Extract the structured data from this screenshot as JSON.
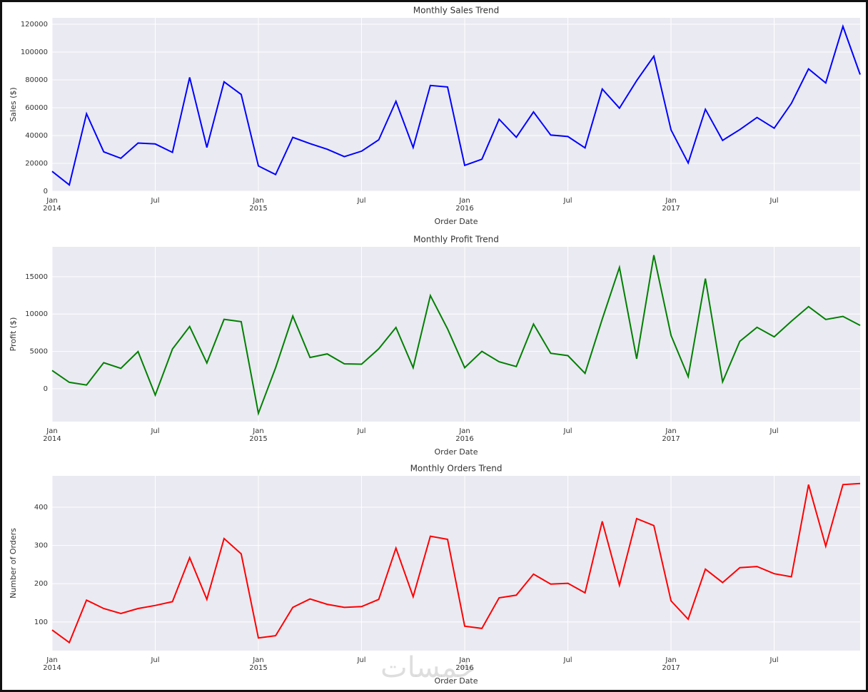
{
  "chart_data": [
    {
      "type": "line",
      "title": "Monthly Sales Trend",
      "xlabel": "Order Date",
      "ylabel": "Sales ($)",
      "color": "#0000ff",
      "categories": [
        "Jan 2014",
        null,
        null,
        null,
        null,
        null,
        "Jul",
        null,
        null,
        null,
        null,
        null,
        "Jan 2015",
        null,
        null,
        null,
        null,
        null,
        "Jul",
        null,
        null,
        null,
        null,
        null,
        "Jan 2016",
        null,
        null,
        null,
        null,
        null,
        "Jul",
        null,
        null,
        null,
        null,
        null,
        "Jan 2017",
        null,
        null,
        null,
        null,
        null,
        "Jul",
        null,
        null,
        null,
        null,
        null
      ],
      "values": [
        14237,
        4520,
        55691,
        28295,
        23648,
        34595,
        33946,
        27909,
        81777,
        31453,
        78629,
        69546,
        18174,
        11951,
        38726,
        34195,
        30132,
        24797,
        28765,
        36898,
        64596,
        31405,
        75973,
        74920,
        18542,
        22979,
        51716,
        38751,
        56988,
        40345,
        39262,
        31115,
        73410,
        59688,
        79412,
        96999,
        43971,
        20301,
        58872,
        36522,
        44261,
        52982,
        45264,
        63121,
        87867,
        77777,
        118448,
        83829
      ],
      "ylim": [
        0,
        124600
      ],
      "yticks": [
        0,
        20000,
        40000,
        60000,
        80000,
        100000,
        120000
      ],
      "grid": true
    },
    {
      "type": "line",
      "title": "Monthly Profit Trend",
      "xlabel": "Order Date",
      "ylabel": "Profit ($)",
      "color": "#008000",
      "categories": [
        "Jan 2014",
        null,
        null,
        null,
        null,
        null,
        "Jul",
        null,
        null,
        null,
        null,
        null,
        "Jan 2015",
        null,
        null,
        null,
        null,
        null,
        "Jul",
        null,
        null,
        null,
        null,
        null,
        "Jan 2016",
        null,
        null,
        null,
        null,
        null,
        "Jul",
        null,
        null,
        null,
        null,
        null,
        "Jan 2017",
        null,
        null,
        null,
        null,
        null,
        "Jul",
        null,
        null,
        null,
        null,
        null
      ],
      "values": [
        2450,
        862,
        499,
        3489,
        2739,
        4976,
        -841,
        5318,
        8329,
        3448,
        9292,
        8984,
        -3281,
        2814,
        9732,
        4188,
        4668,
        3336,
        3289,
        5356,
        8210,
        2817,
        12474,
        8016,
        2825,
        5005,
        3612,
        2978,
        8663,
        4751,
        4432,
        2063,
        9329,
        16243,
        4011,
        17885,
        7140,
        1613,
        14752,
        933,
        6342,
        8224,
        6952,
        9041,
        10992,
        9275,
        9690,
        8483
      ],
      "ylim": [
        -4400,
        19000
      ],
      "yticks": [
        0,
        5000,
        10000,
        15000
      ],
      "grid": true
    },
    {
      "type": "line",
      "title": "Monthly Orders Trend",
      "xlabel": "Order Date",
      "ylabel": "Number of Orders",
      "color": "#ff0000",
      "categories": [
        "Jan 2014",
        null,
        null,
        null,
        null,
        null,
        "Jul",
        null,
        null,
        null,
        null,
        null,
        "Jan 2015",
        null,
        null,
        null,
        null,
        null,
        "Jul",
        null,
        null,
        null,
        null,
        null,
        "Jan 2016",
        null,
        null,
        null,
        null,
        null,
        "Jul",
        null,
        null,
        null,
        null,
        null,
        "Jan 2017",
        null,
        null,
        null,
        null,
        null,
        "Jul",
        null,
        null,
        null,
        null,
        null
      ],
      "values": [
        79,
        46,
        157,
        135,
        122,
        135,
        143,
        153,
        268,
        159,
        318,
        278,
        58,
        64,
        138,
        160,
        146,
        138,
        140,
        159,
        293,
        166,
        324,
        316,
        89,
        83,
        163,
        170,
        225,
        199,
        201,
        176,
        363,
        196,
        370,
        352,
        155,
        107,
        238,
        203,
        242,
        245,
        226,
        218,
        459,
        298,
        459,
        462
      ],
      "ylim": [
        25,
        482
      ],
      "yticks": [
        100,
        200,
        300,
        400
      ],
      "grid": true
    }
  ],
  "watermark": "خمسات"
}
